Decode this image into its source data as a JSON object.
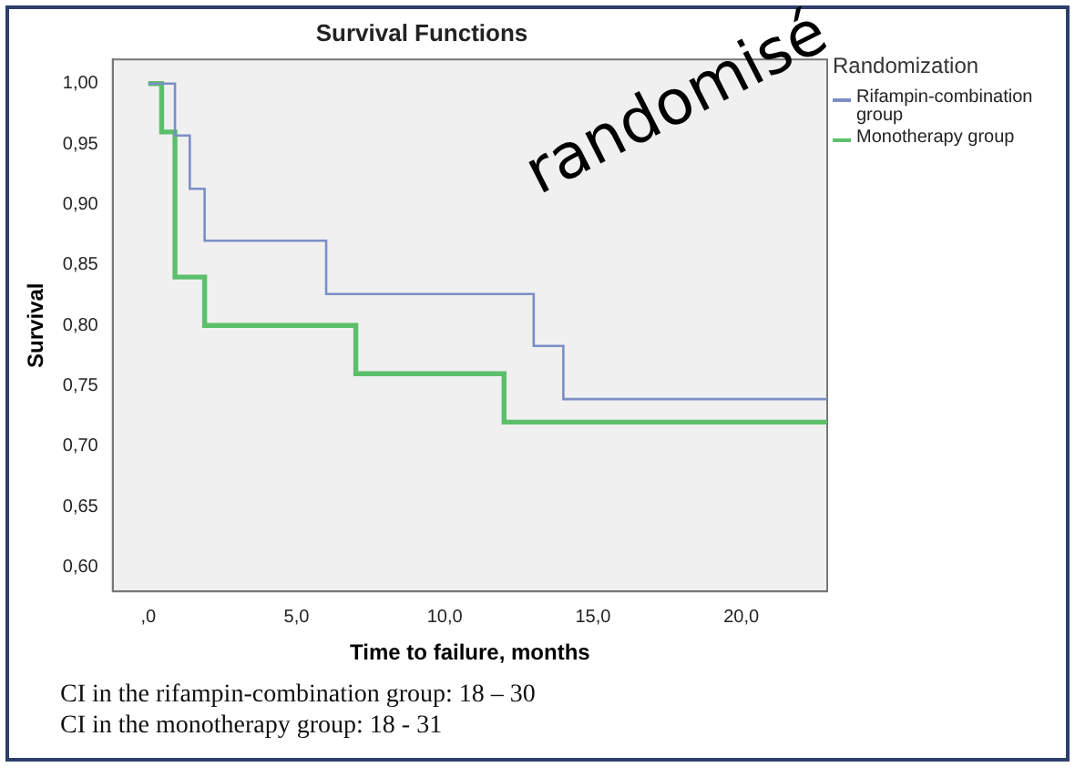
{
  "chart_data": {
    "type": "step",
    "title": "Survival Functions",
    "xlabel": "Time to failure, months",
    "ylabel": "Survival",
    "legend_title": "Randomization",
    "legend": "right",
    "series": [
      {
        "name": "Rifampin-combination group",
        "color": "#7b8fc6",
        "x": [
          0,
          0.9,
          1.4,
          1.9,
          6,
          13,
          14,
          22.9
        ],
        "values": [
          1,
          0.957,
          0.913,
          0.87,
          0.826,
          0.783,
          0.739,
          0.739
        ]
      },
      {
        "name": "Monotherapy group",
        "color": "#5cbf6b",
        "x": [
          0,
          0.45,
          0.9,
          1.9,
          7,
          12,
          22.9
        ],
        "values": [
          1,
          0.96,
          0.84,
          0.8,
          0.76,
          0.72,
          0.72
        ]
      }
    ],
    "xlim": [
      -1.2,
      22.9
    ],
    "xticks": [
      {
        "value": 0,
        "label": ",0"
      },
      {
        "value": 5,
        "label": "5,0"
      },
      {
        "value": 10,
        "label": "10,0"
      },
      {
        "value": 15,
        "label": "15,0"
      },
      {
        "value": 20,
        "label": "20,0"
      }
    ],
    "ylim": [
      0.58,
      1.02
    ],
    "yticks": [
      {
        "value": 0.6,
        "label": "0,60"
      },
      {
        "value": 0.65,
        "label": "0,65"
      },
      {
        "value": 0.7,
        "label": "0,70"
      },
      {
        "value": 0.75,
        "label": "0,75"
      },
      {
        "value": 0.8,
        "label": "0,80"
      },
      {
        "value": 0.85,
        "label": "0,85"
      },
      {
        "value": 0.9,
        "label": "0,90"
      },
      {
        "value": 0.95,
        "label": "0,95"
      },
      {
        "value": 1,
        "label": "1,00"
      }
    ],
    "grid": false,
    "annotations": [
      "randomisé",
      "CI in the rifampin-combination group: 18 – 30",
      "CI in the monotherapy group: 18 - 31"
    ]
  }
}
